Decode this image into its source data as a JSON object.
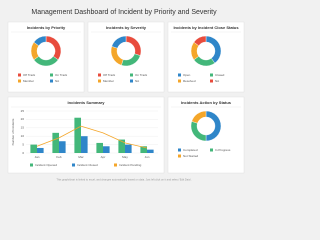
{
  "title": "Management Dashboard of Incident by Priority and Severity",
  "footer": "This graph/chart is linked to excel, and changes automatically based on data. Just left click on it and select 'Edit Data'.",
  "chart_data": [
    {
      "type": "donut",
      "title": "Incidents by Priority",
      "categories": [
        "Off Track",
        "On Track",
        "Member",
        "NA"
      ],
      "values": [
        35,
        30,
        20,
        15
      ],
      "colors": [
        "#e84c3d",
        "#43b77a",
        "#f4a62a",
        "#2f86c9"
      ]
    },
    {
      "type": "donut",
      "title": "Incidents by Severity",
      "categories": [
        "Off Track",
        "On Track",
        "Member",
        "NA"
      ],
      "values": [
        30,
        25,
        25,
        20
      ],
      "colors": [
        "#e84c3d",
        "#43b77a",
        "#f4a62a",
        "#2f86c9"
      ]
    },
    {
      "type": "donut",
      "title": "Incidents by Incident Close Status",
      "categories": [
        "Open",
        "Closed",
        "Resolved",
        "NA"
      ],
      "values": [
        40,
        25,
        20,
        15
      ],
      "colors": [
        "#2f86c9",
        "#43b77a",
        "#f4a62a",
        "#e84c3d"
      ]
    },
    {
      "type": "bar",
      "title": "Incidents Summary",
      "ylabel": "Number of Incidents",
      "categories": [
        "Jan",
        "Feb",
        "Mar",
        "Apr",
        "May",
        "Jun"
      ],
      "ylim": [
        0,
        25
      ],
      "yticks": [
        0,
        5,
        10,
        15,
        20,
        25
      ],
      "series": [
        {
          "name": "Incident Opened",
          "color": "#43b77a",
          "mark": "bar",
          "values": [
            5,
            12,
            21,
            6,
            8,
            4
          ]
        },
        {
          "name": "Incident Closed",
          "color": "#2f86c9",
          "mark": "bar",
          "values": [
            3,
            7,
            10,
            4,
            5,
            2
          ]
        },
        {
          "name": "Incident Pending",
          "color": "#f4a62a",
          "mark": "line",
          "values": [
            4,
            9,
            16,
            12,
            6,
            3
          ]
        }
      ]
    },
    {
      "type": "donut",
      "title": "Incidents Action by Status",
      "categories": [
        "Completed",
        "In Progress",
        "Not Started"
      ],
      "values": [
        50,
        30,
        20
      ],
      "colors": [
        "#2f86c9",
        "#43b77a",
        "#f4a62a"
      ]
    }
  ]
}
